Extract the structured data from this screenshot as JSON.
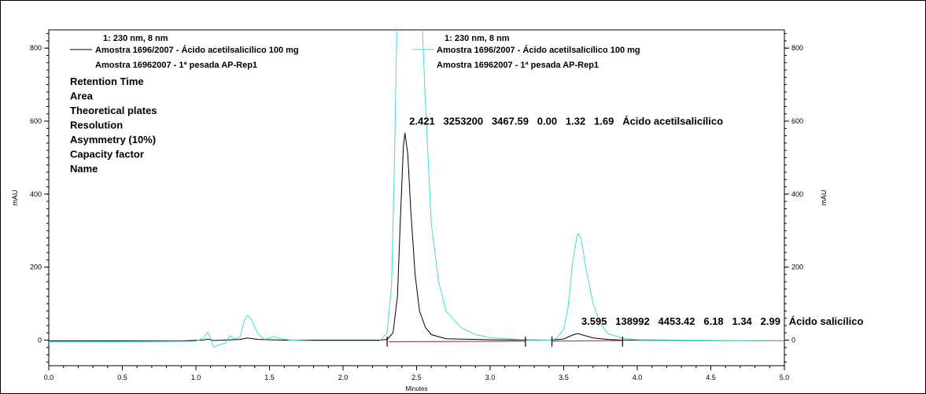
{
  "chart_data": {
    "type": "line",
    "xlabel": "Minutes",
    "ylabel_left": "mAU",
    "ylabel_right": "mAU",
    "xlim": [
      0.0,
      5.0
    ],
    "ylim": [
      -70,
      850
    ],
    "x_ticks": [
      0.0,
      0.5,
      1.0,
      1.5,
      2.0,
      2.5,
      3.0,
      3.5,
      4.0,
      4.5,
      5.0
    ],
    "y_ticks": [
      0,
      200,
      400,
      600,
      800
    ],
    "grid": false,
    "legend_left": {
      "header": "1: 230 nm, 8 nm",
      "line1": "Amostra 1696/2007 - Ácido acetilsalicílico 100 mg",
      "line2": "Amostra 16962007 - 1ª pesada AP-Rep1"
    },
    "legend_right": {
      "header": "1: 230 nm, 8 nm",
      "line1": "Amostra 1696/2007 - Ácido acetilsalicílico 100 mg",
      "line2": "Amostra 16962007 - 1ª pesada AP-Rep1"
    },
    "param_labels": [
      "Retention Time",
      "Area",
      "Theoretical plates",
      "Resolution",
      "Asymmetry (10%)",
      "Capacity factor",
      "Name"
    ],
    "peak_annotations": [
      {
        "text": "2.421   3253200   3467.59   0.00   1.32   1.69   Ácido acetilsalicílico",
        "x": 2.45,
        "y": 590
      },
      {
        "text": "3.595   138992   4453.42   6.18   1.34   2.99   Ácido salicílico",
        "x": 3.62,
        "y": 42
      }
    ],
    "series": [
      {
        "color": "#000000",
        "points": [
          [
            0.0,
            -2
          ],
          [
            0.9,
            -2
          ],
          [
            1.05,
            0
          ],
          [
            1.08,
            3
          ],
          [
            1.12,
            -1
          ],
          [
            1.3,
            2
          ],
          [
            1.35,
            6
          ],
          [
            1.42,
            2
          ],
          [
            1.6,
            0
          ],
          [
            2.0,
            0
          ],
          [
            2.25,
            0
          ],
          [
            2.3,
            2
          ],
          [
            2.34,
            20
          ],
          [
            2.37,
            120
          ],
          [
            2.39,
            330
          ],
          [
            2.41,
            530
          ],
          [
            2.421,
            568
          ],
          [
            2.44,
            510
          ],
          [
            2.46,
            360
          ],
          [
            2.49,
            180
          ],
          [
            2.52,
            80
          ],
          [
            2.56,
            35
          ],
          [
            2.6,
            15
          ],
          [
            2.7,
            4
          ],
          [
            3.0,
            1
          ],
          [
            3.4,
            0
          ],
          [
            3.5,
            3
          ],
          [
            3.56,
            14
          ],
          [
            3.595,
            18
          ],
          [
            3.63,
            14
          ],
          [
            3.7,
            6
          ],
          [
            3.8,
            2
          ],
          [
            3.9,
            0
          ],
          [
            5.0,
            -2
          ]
        ]
      },
      {
        "color": "#40e0d0",
        "points": [
          [
            0.0,
            -5
          ],
          [
            0.6,
            -4
          ],
          [
            1.0,
            -3
          ],
          [
            1.05,
            5
          ],
          [
            1.08,
            22
          ],
          [
            1.1,
            5
          ],
          [
            1.12,
            -20
          ],
          [
            1.15,
            -14
          ],
          [
            1.2,
            -8
          ],
          [
            1.23,
            12
          ],
          [
            1.26,
            4
          ],
          [
            1.3,
            8
          ],
          [
            1.33,
            55
          ],
          [
            1.35,
            68
          ],
          [
            1.38,
            55
          ],
          [
            1.42,
            18
          ],
          [
            1.47,
            2
          ],
          [
            1.53,
            10
          ],
          [
            1.58,
            4
          ],
          [
            1.65,
            0
          ],
          [
            1.8,
            -2
          ],
          [
            2.0,
            -2
          ],
          [
            2.25,
            -2
          ],
          [
            2.3,
            20
          ],
          [
            2.33,
            150
          ],
          [
            2.35,
            500
          ],
          [
            2.37,
            950
          ],
          [
            2.53,
            950
          ],
          [
            2.56,
            650
          ],
          [
            2.6,
            320
          ],
          [
            2.65,
            160
          ],
          [
            2.7,
            80
          ],
          [
            2.8,
            35
          ],
          [
            2.9,
            15
          ],
          [
            3.0,
            7
          ],
          [
            3.2,
            2
          ],
          [
            3.4,
            0
          ],
          [
            3.45,
            4
          ],
          [
            3.5,
            30
          ],
          [
            3.53,
            90
          ],
          [
            3.56,
            210
          ],
          [
            3.59,
            285
          ],
          [
            3.6,
            292
          ],
          [
            3.62,
            275
          ],
          [
            3.65,
            200
          ],
          [
            3.7,
            100
          ],
          [
            3.75,
            45
          ],
          [
            3.8,
            18
          ],
          [
            3.9,
            5
          ],
          [
            4.0,
            1
          ],
          [
            5.0,
            -2
          ]
        ]
      },
      {
        "color": "#b0201e",
        "points": [
          [
            2.31,
            -4
          ],
          [
            3.24,
            -3
          ]
        ]
      },
      {
        "color": "#b0201e",
        "points": [
          [
            3.42,
            -3
          ],
          [
            3.9,
            -1
          ]
        ]
      }
    ],
    "integration_marks": [
      2.3,
      3.24,
      3.42,
      3.9
    ]
  }
}
